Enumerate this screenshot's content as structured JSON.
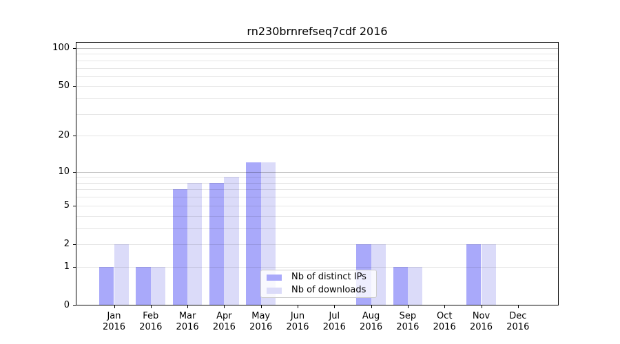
{
  "chart_data": {
    "type": "bar",
    "title": "rn230brnrefseq7cdf 2016",
    "year": "2016",
    "y_scale": "log10(1+x)",
    "categories": [
      "Jan",
      "Feb",
      "Mar",
      "Apr",
      "May",
      "Jun",
      "Jul",
      "Aug",
      "Sep",
      "Oct",
      "Nov",
      "Dec"
    ],
    "series": [
      {
        "name": "Nb of distinct IPs",
        "color": "#a9a9fa",
        "values": [
          1,
          1,
          7,
          8,
          12,
          0,
          0,
          2,
          1,
          0,
          2,
          0
        ]
      },
      {
        "name": "Nb of downloads",
        "color": "#dbdbf9",
        "values": [
          2,
          1,
          8,
          9,
          12,
          0,
          0,
          2,
          1,
          0,
          2,
          0
        ]
      }
    ],
    "y_ticks": [
      100,
      50,
      20,
      10,
      5,
      2,
      1,
      0
    ],
    "ylim": [
      0,
      112
    ],
    "grid": "horizontal",
    "grid_minor_values": [
      1,
      2,
      3,
      4,
      5,
      6,
      7,
      8,
      9,
      20,
      30,
      40,
      50,
      60,
      70,
      80,
      90
    ],
    "grid_major_values": [
      10,
      100
    ],
    "legend_position": "lower-center-right",
    "background": "#ffffff"
  }
}
